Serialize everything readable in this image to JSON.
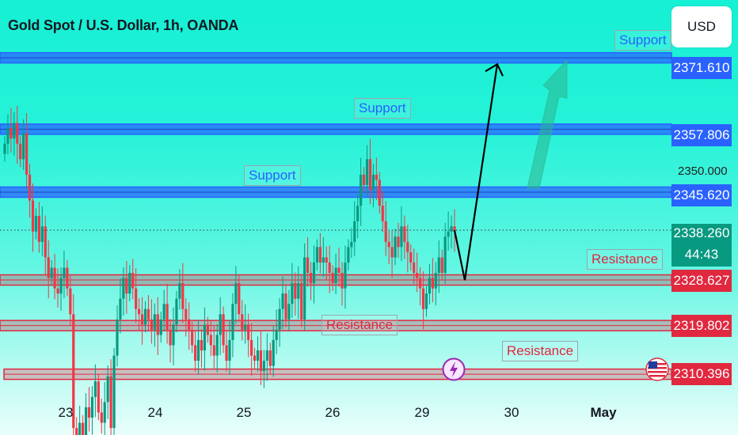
{
  "header": {
    "title": "Gold Spot / U.S. Dollar, 1h, OANDA",
    "currency_button": "USD"
  },
  "colors": {
    "support_zone": "#2962ff",
    "resistance_zone": "#e0283f",
    "candle_up": "#089981",
    "candle_down": "#f23645",
    "arrow": "#000000",
    "projection_arrow": "#2bb58e"
  },
  "price_axis": {
    "visible_prices": [
      "2350.000"
    ],
    "last_price": "2338.260",
    "countdown": "44:43"
  },
  "chart_data": {
    "type": "candlestick",
    "title": "Gold Spot / U.S. Dollar, 1h, OANDA",
    "x_tick_labels": [
      "23",
      "24",
      "25",
      "26",
      "29",
      "30",
      "May"
    ],
    "ylim": [
      2303,
      2381
    ],
    "support_zones": [
      {
        "label": "Support",
        "price": 2371.61,
        "price_text": "2371.610"
      },
      {
        "label": "Support",
        "price": 2357.806,
        "price_text": "2357.806"
      },
      {
        "label": "Support",
        "price": 2345.62,
        "price_text": "2345.620"
      }
    ],
    "resistance_zones": [
      {
        "label": "Resistance",
        "price": 2328.627,
        "price_text": "2328.627"
      },
      {
        "label": "Resistance",
        "price": 2319.802,
        "price_text": "2319.802"
      },
      {
        "label": "Resistance",
        "price": 2310.396,
        "price_text": "2310.396"
      }
    ],
    "last_price": 2338.26,
    "projection_path": [
      2328.6,
      2371.6
    ],
    "candles_close": [
      2355,
      2358,
      2356,
      2359,
      2355,
      2352,
      2357,
      2349,
      2344,
      2338,
      2341,
      2336,
      2339,
      2333,
      2329,
      2331,
      2327,
      2326,
      2329,
      2331,
      2327,
      2322,
      2300,
      2298,
      2301,
      2297,
      2304,
      2302,
      2306,
      2309,
      2303,
      2301,
      2305,
      2310,
      2300,
      2314,
      2321,
      2325,
      2329,
      2326,
      2330,
      2327,
      2323,
      2322,
      2320,
      2323,
      2321,
      2319,
      2322,
      2318,
      2321,
      2324,
      2319,
      2316,
      2320,
      2325,
      2328,
      2323,
      2321,
      2319,
      2316,
      2313,
      2317,
      2315,
      2320,
      2318,
      2316,
      2314,
      2318,
      2322,
      2316,
      2313,
      2317,
      2324,
      2328,
      2322,
      2319,
      2320,
      2317,
      2314,
      2313,
      2315,
      2311,
      2313,
      2315,
      2312,
      2317,
      2319,
      2323,
      2326,
      2321,
      2324,
      2328,
      2325,
      2328,
      2321,
      2333,
      2330,
      2328,
      2332,
      2335,
      2332,
      2333,
      2332,
      2330,
      2328,
      2331,
      2330,
      2327,
      2332,
      2335,
      2336,
      2340,
      2343,
      2349,
      2347,
      2352,
      2346,
      2349,
      2348,
      2343,
      2340,
      2336,
      2335,
      2333,
      2337,
      2335,
      2339,
      2336,
      2334,
      2332,
      2330,
      2329,
      2327,
      2323,
      2326,
      2329,
      2327,
      2330,
      2333,
      2330,
      2337,
      2338,
      2339,
      2338
    ]
  }
}
